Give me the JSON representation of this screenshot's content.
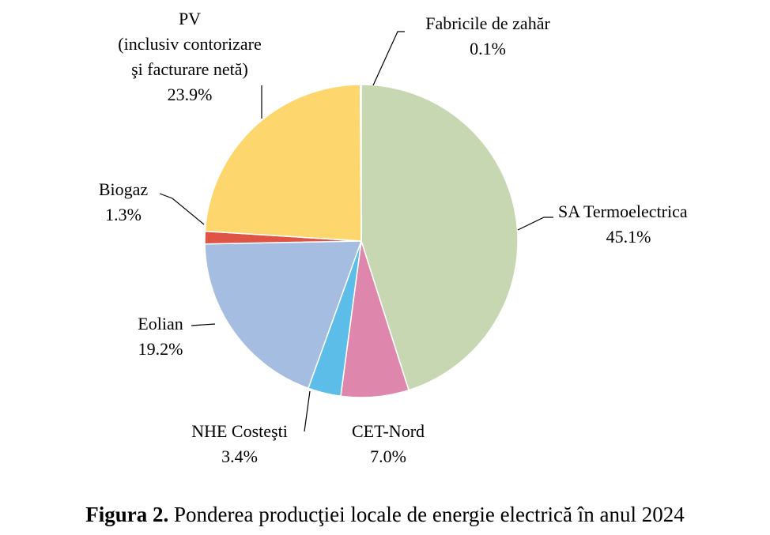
{
  "chart_data": {
    "type": "pie",
    "title": "",
    "slices": [
      {
        "label": [
          "SA Termoelectrica"
        ],
        "value": 45.1,
        "pct": "45.1%",
        "color": "#c6d7b2"
      },
      {
        "label": [
          "CET-Nord"
        ],
        "value": 7.0,
        "pct": "7.0%",
        "color": "#de86ac"
      },
      {
        "label": [
          "NHE Costeşti"
        ],
        "value": 3.4,
        "pct": "3.4%",
        "color": "#5dbde9"
      },
      {
        "label": [
          "Eolian"
        ],
        "value": 19.2,
        "pct": "19.2%",
        "color": "#a5bde0"
      },
      {
        "label": [
          "Biogaz"
        ],
        "value": 1.3,
        "pct": "1.3%",
        "color": "#de5546"
      },
      {
        "label": [
          "PV",
          "(inclusiv contorizare",
          "şi facturare netă)"
        ],
        "value": 23.9,
        "pct": "23.9%",
        "color": "#fed66e"
      },
      {
        "label": [
          "Fabricile de zahăr"
        ],
        "value": 0.1,
        "pct": "0.1%",
        "color": "#c9c9c9"
      }
    ],
    "start_angle_deg": 0,
    "direction": "clockwise",
    "legend": "none"
  },
  "caption": {
    "prefix": "Figura 2.",
    "text": " Ponderea producţiei locale de energie electrică în anul 2024"
  }
}
